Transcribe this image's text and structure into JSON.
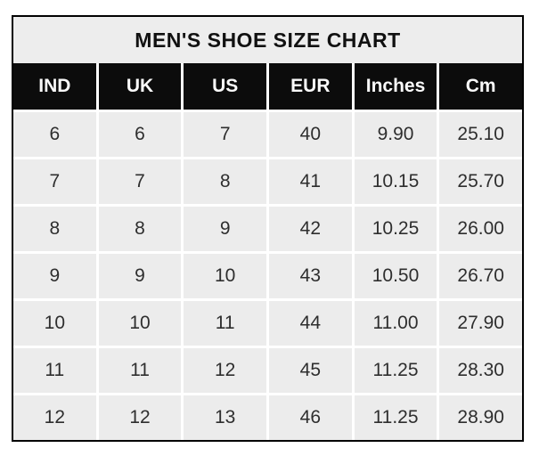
{
  "title": "MEN'S SHOE SIZE CHART",
  "colors": {
    "page_background": "#ffffff",
    "table_border": "#000000",
    "title_background": "#ededed",
    "header_background": "#0c0c0c",
    "header_text": "#fafafa",
    "cell_background": "#ececec",
    "cell_text": "#2e2e2e",
    "gridline": "#ffffff"
  },
  "chart_data": {
    "type": "table",
    "title": "MEN'S SHOE SIZE CHART",
    "columns": [
      "IND",
      "UK",
      "US",
      "EUR",
      "Inches",
      "Cm"
    ],
    "rows": [
      [
        "6",
        "6",
        "7",
        "40",
        "9.90",
        "25.10"
      ],
      [
        "7",
        "7",
        "8",
        "41",
        "10.15",
        "25.70"
      ],
      [
        "8",
        "8",
        "9",
        "42",
        "10.25",
        "26.00"
      ],
      [
        "9",
        "9",
        "10",
        "43",
        "10.50",
        "26.70"
      ],
      [
        "10",
        "10",
        "11",
        "44",
        "11.00",
        "27.90"
      ],
      [
        "11",
        "11",
        "12",
        "45",
        "11.25",
        "28.30"
      ],
      [
        "12",
        "12",
        "13",
        "46",
        "11.25",
        "28.90"
      ]
    ]
  }
}
